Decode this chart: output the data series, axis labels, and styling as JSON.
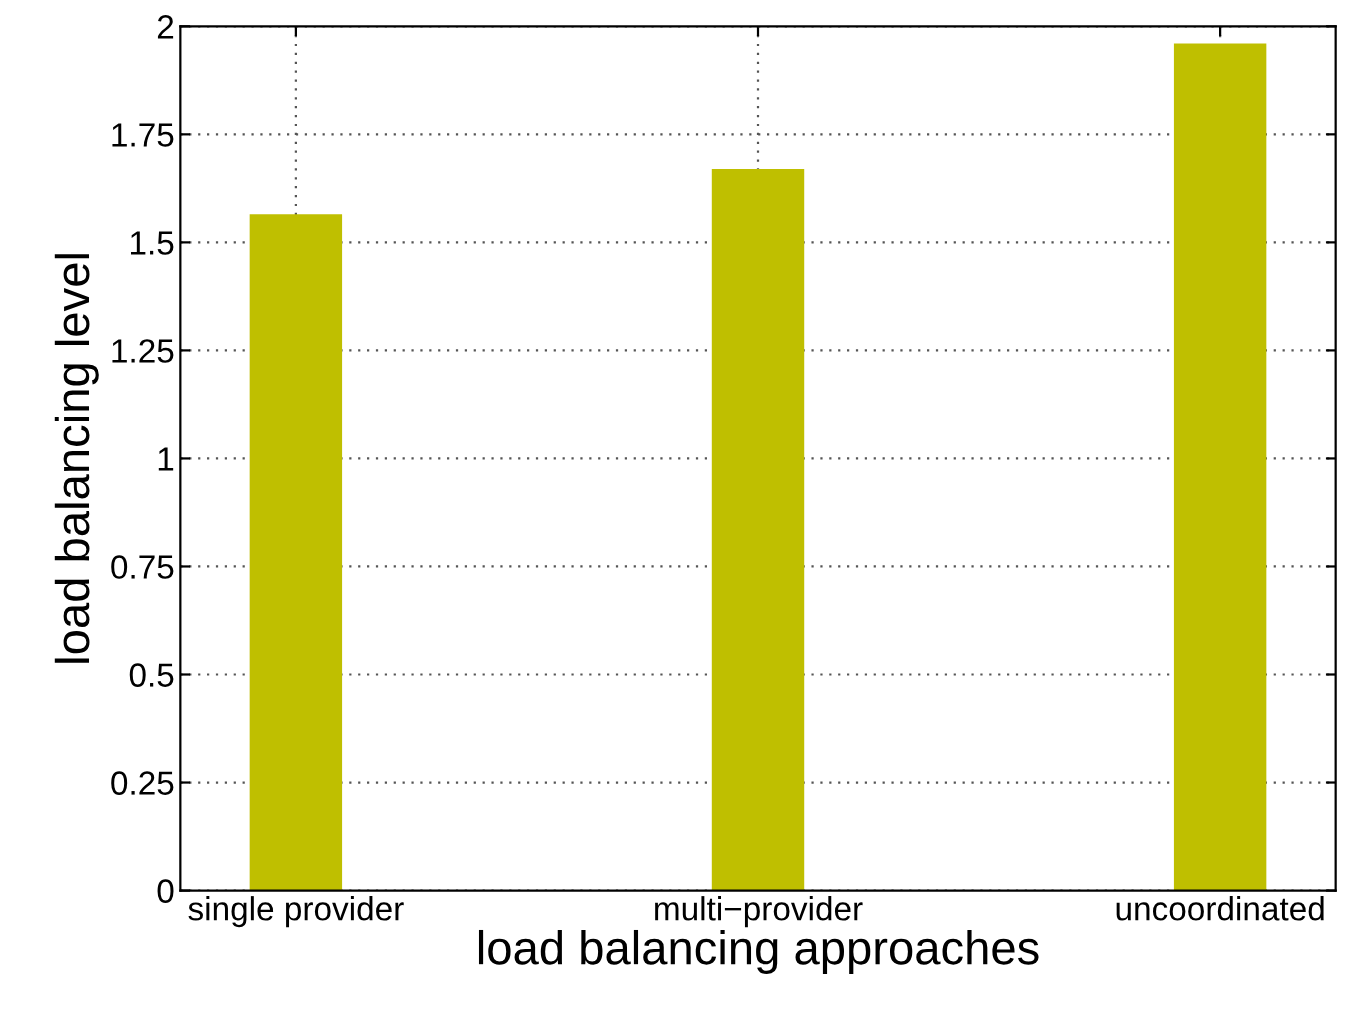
{
  "chart_data": {
    "type": "bar",
    "xlabel": "load balancing approaches",
    "ylabel": "load balancing level",
    "categories": [
      "single provider",
      "multi−provider",
      "uncoordinated"
    ],
    "values": [
      1.565,
      1.67,
      1.96
    ],
    "color": "#bfbf00",
    "ylim": [
      0,
      2
    ],
    "yticks": [
      0,
      0.25,
      0.5,
      0.75,
      1,
      1.25,
      1.5,
      1.75,
      2
    ],
    "grid": true
  }
}
